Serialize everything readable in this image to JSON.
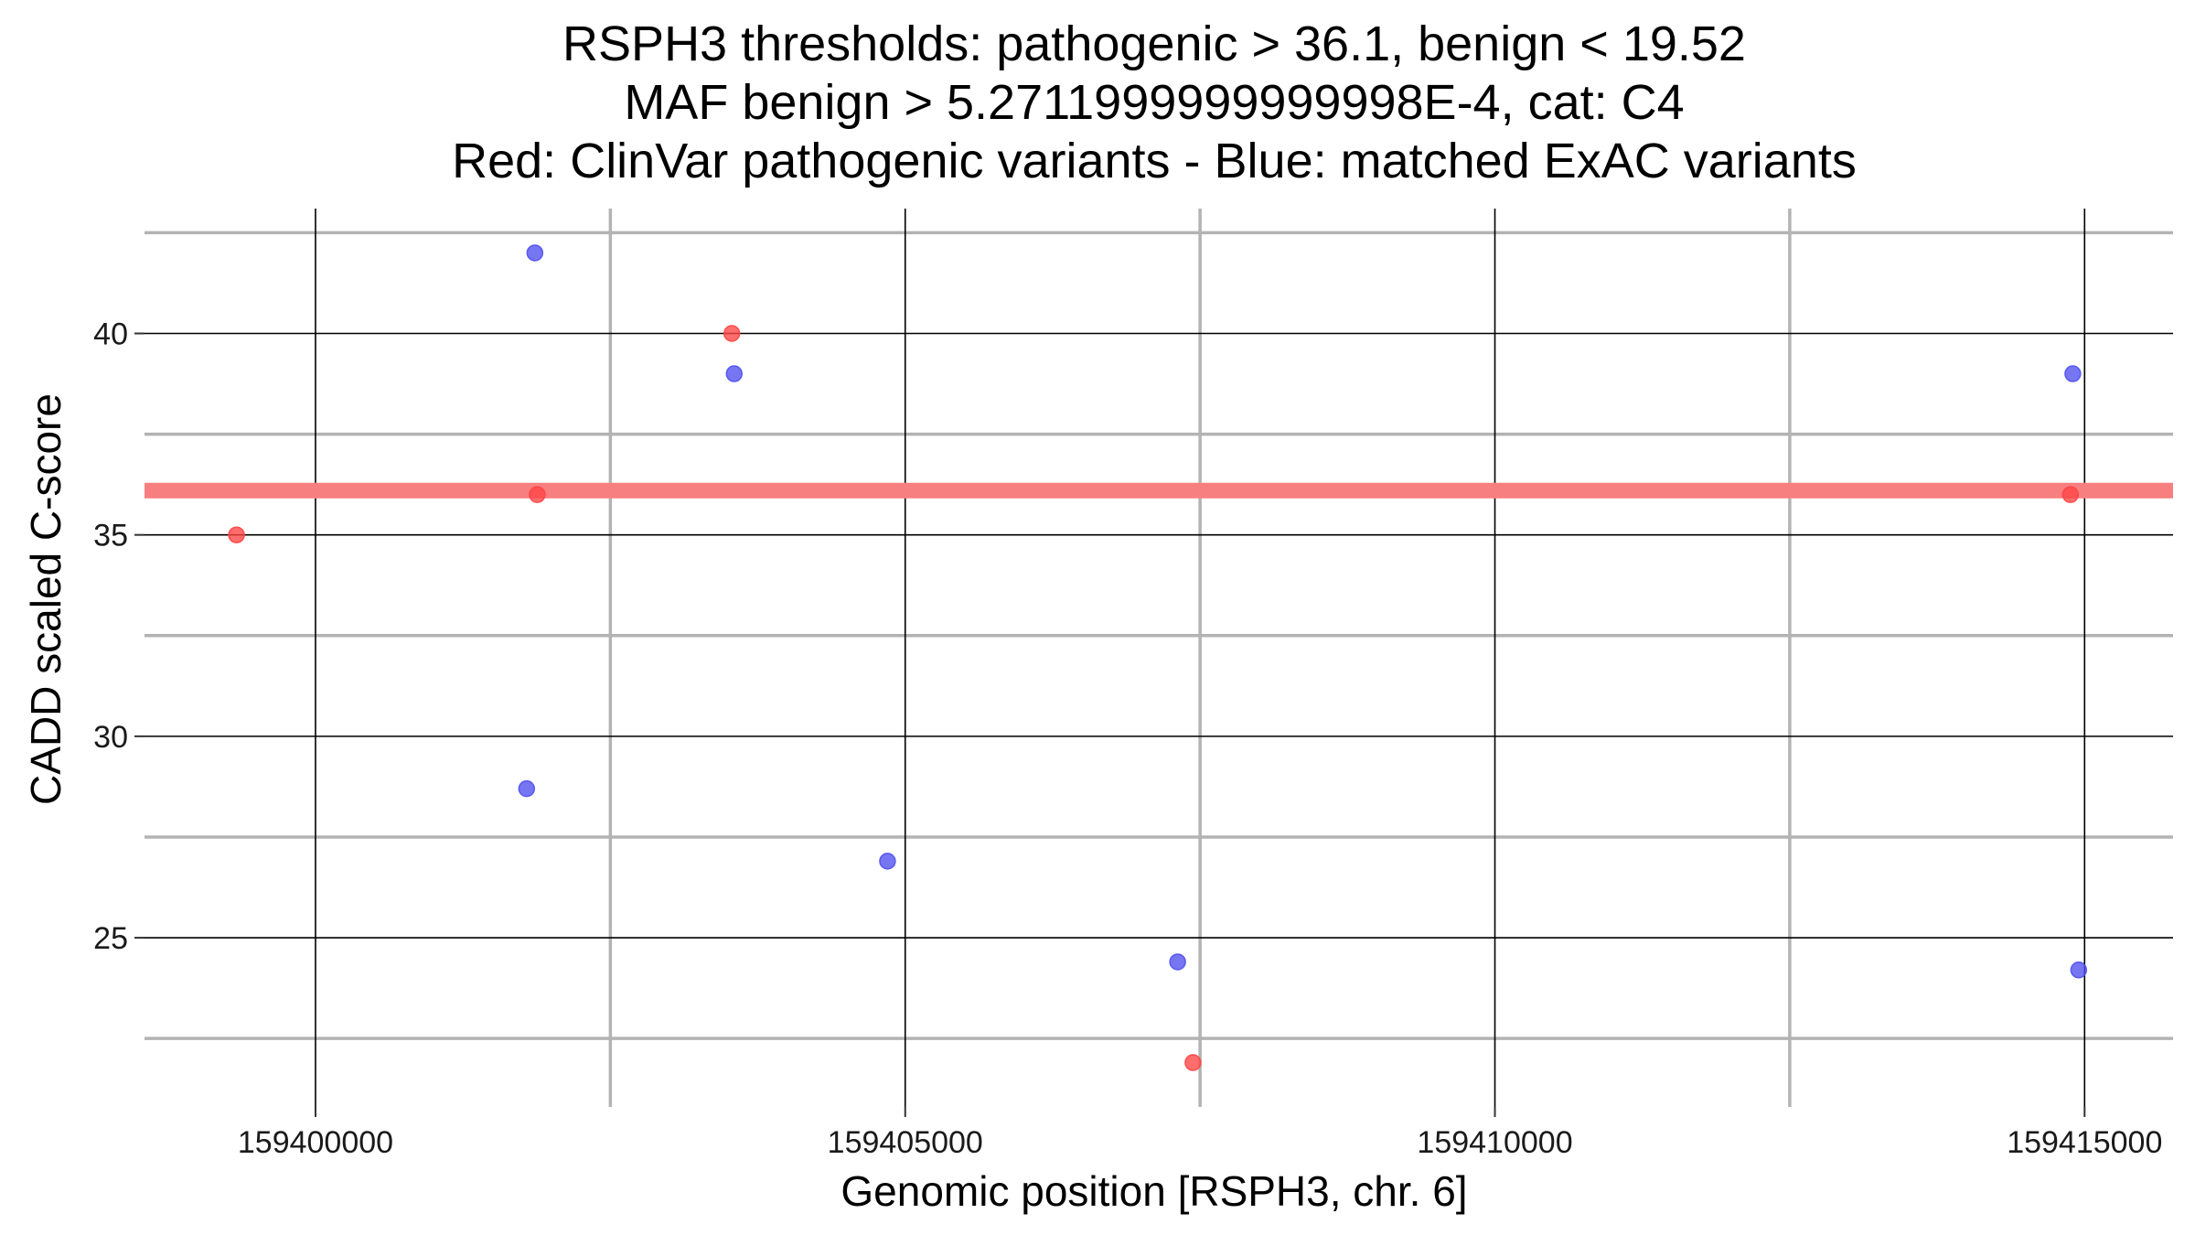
{
  "chart_data": {
    "type": "scatter",
    "title_lines": [
      "RSPH3 thresholds: pathogenic > 36.1, benign < 19.52",
      "MAF benign > 5.2711999999999998E-4, cat: C4",
      "Red: ClinVar pathogenic variants - Blue: matched ExAC variants"
    ],
    "xlabel": "Genomic position [RSPH3, chr. 6]",
    "ylabel": "CADD scaled C-score",
    "xlim": [
      159398550,
      159415750
    ],
    "ylim": [
      20.8,
      43.1
    ],
    "x_major_ticks": [
      159400000,
      159405000,
      159410000,
      159415000
    ],
    "x_tick_labels": [
      "159400000",
      "159405000",
      "159410000",
      "159415000"
    ],
    "x_minor_gridlines": [
      159402500,
      159407500,
      159412500
    ],
    "y_major_ticks": [
      25,
      30,
      35,
      40
    ],
    "y_tick_labels": [
      "25",
      "30",
      "35",
      "40"
    ],
    "y_minor_gridlines": [
      22.5,
      27.5,
      32.5,
      37.5,
      42.5
    ],
    "threshold": {
      "label": "pathogenic threshold",
      "value": 36.1,
      "color": "#f87f7f"
    },
    "series": [
      {
        "name": "ClinVar pathogenic variants",
        "color": "#ff4444",
        "points": [
          {
            "x": 159399330,
            "y": 35.0
          },
          {
            "x": 159401880,
            "y": 36.0
          },
          {
            "x": 159403530,
            "y": 40.0
          },
          {
            "x": 159407440,
            "y": 21.9
          },
          {
            "x": 159414880,
            "y": 36.0
          }
        ]
      },
      {
        "name": "matched ExAC variants",
        "color": "#5050ee",
        "points": [
          {
            "x": 159401860,
            "y": 42.0
          },
          {
            "x": 159401790,
            "y": 28.7
          },
          {
            "x": 159403550,
            "y": 39.0
          },
          {
            "x": 159404850,
            "y": 26.9
          },
          {
            "x": 159407310,
            "y": 24.4
          },
          {
            "x": 159414900,
            "y": 39.0
          },
          {
            "x": 159414950,
            "y": 24.2
          }
        ]
      }
    ],
    "grid": true,
    "legend": "none (encoded in title)"
  }
}
